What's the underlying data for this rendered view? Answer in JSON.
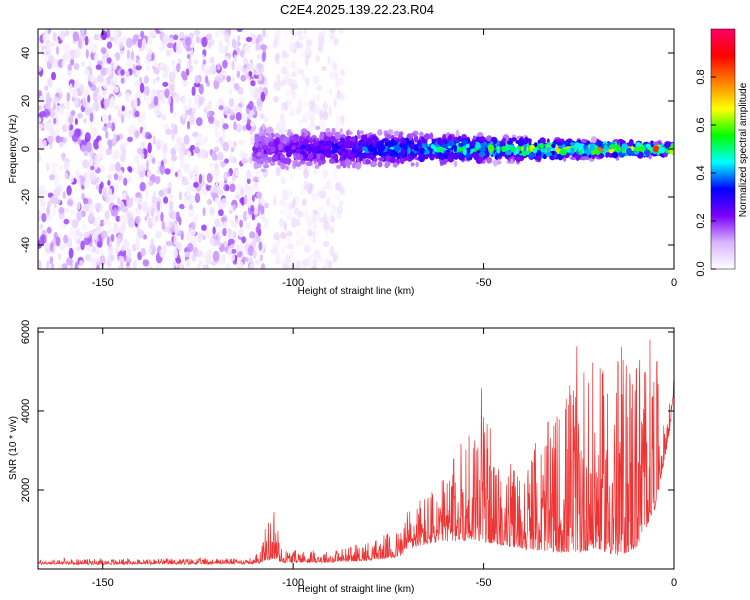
{
  "title": "C2E4.2025.139.22.23.R04",
  "chart_data": [
    {
      "type": "heatmap",
      "xlabel": "Height of straight line (km)",
      "ylabel": "Frequency (Hz)",
      "xlim": [
        -167,
        0
      ],
      "ylim": [
        -50,
        50
      ],
      "xticks": [
        -150,
        -100,
        -50,
        0
      ],
      "yticks": [
        -40,
        -20,
        0,
        20,
        40
      ],
      "colorbar": {
        "label": "Normalized spectral amplitude",
        "range": [
          0,
          1
        ],
        "ticks": [
          "0.0",
          "0.2",
          "0.4",
          "0.6",
          "0.8"
        ],
        "colors": [
          "#ffffff",
          "#d8b4ff",
          "#7b00ff",
          "#0000ff",
          "#00ffff",
          "#00ff00",
          "#ffff00",
          "#ff8000",
          "#ff0000",
          "#ff0066"
        ]
      },
      "regions": [
        {
          "x_range": [
            -167,
            -107
          ],
          "y_range": [
            -50,
            50
          ],
          "density": "dense",
          "amplitude": [
            0.02,
            0.2
          ]
        },
        {
          "x_range": [
            -105,
            -87
          ],
          "y_range": [
            -50,
            50
          ],
          "density": "sparse",
          "amplitude": [
            0.02,
            0.08
          ]
        },
        {
          "x_range": [
            -110,
            0
          ],
          "y_center": 0,
          "half_width_start": 8,
          "half_width_end": 2,
          "amplitude": [
            0.1,
            0.95
          ]
        }
      ],
      "grid": false
    },
    {
      "type": "line",
      "xlabel": "Height of straight line (km)",
      "ylabel": "SNR (10 * v/v)",
      "xlim": [
        -167,
        0
      ],
      "ylim": [
        0,
        6100
      ],
      "xticks": [
        -150,
        -100,
        -50,
        0
      ],
      "yticks": [
        2000,
        4000,
        6000
      ],
      "color": "#ee3333",
      "envelope": [
        {
          "x": -167,
          "base": 100,
          "peak": 230
        },
        {
          "x": -110,
          "base": 120,
          "peak": 260
        },
        {
          "x": -105,
          "base": 250,
          "peak": 1700
        },
        {
          "x": -103,
          "base": 150,
          "peak": 500
        },
        {
          "x": -90,
          "base": 150,
          "peak": 450
        },
        {
          "x": -80,
          "base": 200,
          "peak": 700
        },
        {
          "x": -72,
          "base": 300,
          "peak": 1000
        },
        {
          "x": -70,
          "base": 500,
          "peak": 1600
        },
        {
          "x": -60,
          "base": 700,
          "peak": 2300
        },
        {
          "x": -50,
          "base": 700,
          "peak": 4900
        },
        {
          "x": -47,
          "base": 600,
          "peak": 2600
        },
        {
          "x": -40,
          "base": 500,
          "peak": 2700
        },
        {
          "x": -30,
          "base": 400,
          "peak": 4200
        },
        {
          "x": -25,
          "base": 400,
          "peak": 5800
        },
        {
          "x": -20,
          "base": 500,
          "peak": 5000
        },
        {
          "x": -15,
          "base": 300,
          "peak": 5600
        },
        {
          "x": -10,
          "base": 500,
          "peak": 6100
        },
        {
          "x": -5,
          "base": 1500,
          "peak": 5900
        },
        {
          "x": -3,
          "base": 2500,
          "peak": 3500
        },
        {
          "x": -1,
          "base": 3500,
          "peak": 4500
        },
        {
          "x": 0,
          "base": 4600,
          "peak": 5000
        }
      ],
      "grid": false
    }
  ]
}
